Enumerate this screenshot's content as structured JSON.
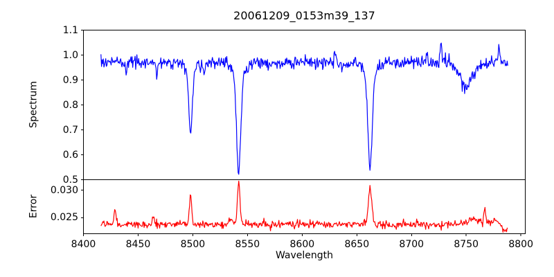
{
  "chart_data": {
    "type": "line",
    "title": "20061209_0153m39_137",
    "xlabel": "Wavelength",
    "x_ticks": [
      8400,
      8450,
      8500,
      8550,
      8600,
      8650,
      8700,
      8750,
      8800
    ],
    "x_tick_labels": [
      "8400",
      "8450",
      "8500",
      "8550",
      "8600",
      "8650",
      "8700",
      "8750",
      "8800"
    ],
    "xlim": [
      8400,
      8804
    ],
    "wavelength_range": [
      8416,
      8788
    ],
    "n_points": 680,
    "seed": 7,
    "grid": false,
    "legend": "none",
    "frame_color": "#000000",
    "background": "#ffffff",
    "panels": [
      {
        "name": "spectrum",
        "ylabel": "Spectrum",
        "ylim": [
          0.5,
          1.1
        ],
        "y_ticks": [
          0.5,
          0.6,
          0.7,
          0.8,
          0.9,
          1.0,
          1.1
        ],
        "y_tick_labels": [
          "0.5",
          "0.6",
          "0.7",
          "0.8",
          "0.9",
          "1.0",
          "1.1"
        ],
        "line_color": "#0000ff",
        "continuum": 0.97,
        "noise_sigma": 0.012,
        "absorption_lines": [
          {
            "center": 8498,
            "depth": 0.25,
            "sigma": 1.6
          },
          {
            "center": 8498,
            "depth": 0.033,
            "sigma": 4.5
          },
          {
            "center": 8542,
            "depth": 0.4,
            "sigma": 1.9
          },
          {
            "center": 8542,
            "depth": 0.04,
            "sigma": 5.5
          },
          {
            "center": 8662,
            "depth": 0.375,
            "sigma": 2.0
          },
          {
            "center": 8662,
            "depth": 0.04,
            "sigma": 5.5
          },
          {
            "center": 8750,
            "depth": 0.09,
            "sigma": 6.5
          },
          {
            "center": 8439,
            "depth": 0.04,
            "sigma": 0.8
          },
          {
            "center": 8467,
            "depth": 0.045,
            "sigma": 0.8
          },
          {
            "center": 8510,
            "depth": 0.035,
            "sigma": 0.8
          }
        ],
        "emission_spikes": [
          {
            "center": 8630,
            "amp": 0.05,
            "sigma": 0.7
          },
          {
            "center": 8714,
            "amp": 0.055,
            "sigma": 0.7
          },
          {
            "center": 8727,
            "amp": 0.085,
            "sigma": 0.7
          },
          {
            "center": 8780,
            "amp": 0.07,
            "sigma": 0.7
          }
        ]
      },
      {
        "name": "error",
        "ylabel": "Error",
        "ylim": [
          0.02212,
          0.03188
        ],
        "y_ticks": [
          0.025,
          0.03
        ],
        "y_tick_labels": [
          "0.025",
          "0.030"
        ],
        "line_color": "#ff0000",
        "baseline": 0.0238,
        "noise_sigma": 0.00032,
        "features": [
          {
            "center": 8429,
            "amp": 0.003,
            "sigma": 0.9
          },
          {
            "center": 8464,
            "amp": 0.0016,
            "sigma": 0.9
          },
          {
            "center": 8498,
            "amp": 0.0055,
            "sigma": 1.0
          },
          {
            "center": 8535,
            "amp": 0.001,
            "sigma": 1.2
          },
          {
            "center": 8542,
            "amp": 0.0077,
            "sigma": 1.2
          },
          {
            "center": 8662,
            "amp": 0.0068,
            "sigma": 1.5
          },
          {
            "center": 8757,
            "amp": 0.0009,
            "sigma": 6.0
          },
          {
            "center": 8767,
            "amp": 0.0027,
            "sigma": 0.8
          },
          {
            "center": 8775,
            "amp": 0.0007,
            "sigma": 4.0
          },
          {
            "center": 8786,
            "amp": -0.0013,
            "sigma": 2.5
          }
        ]
      }
    ]
  }
}
